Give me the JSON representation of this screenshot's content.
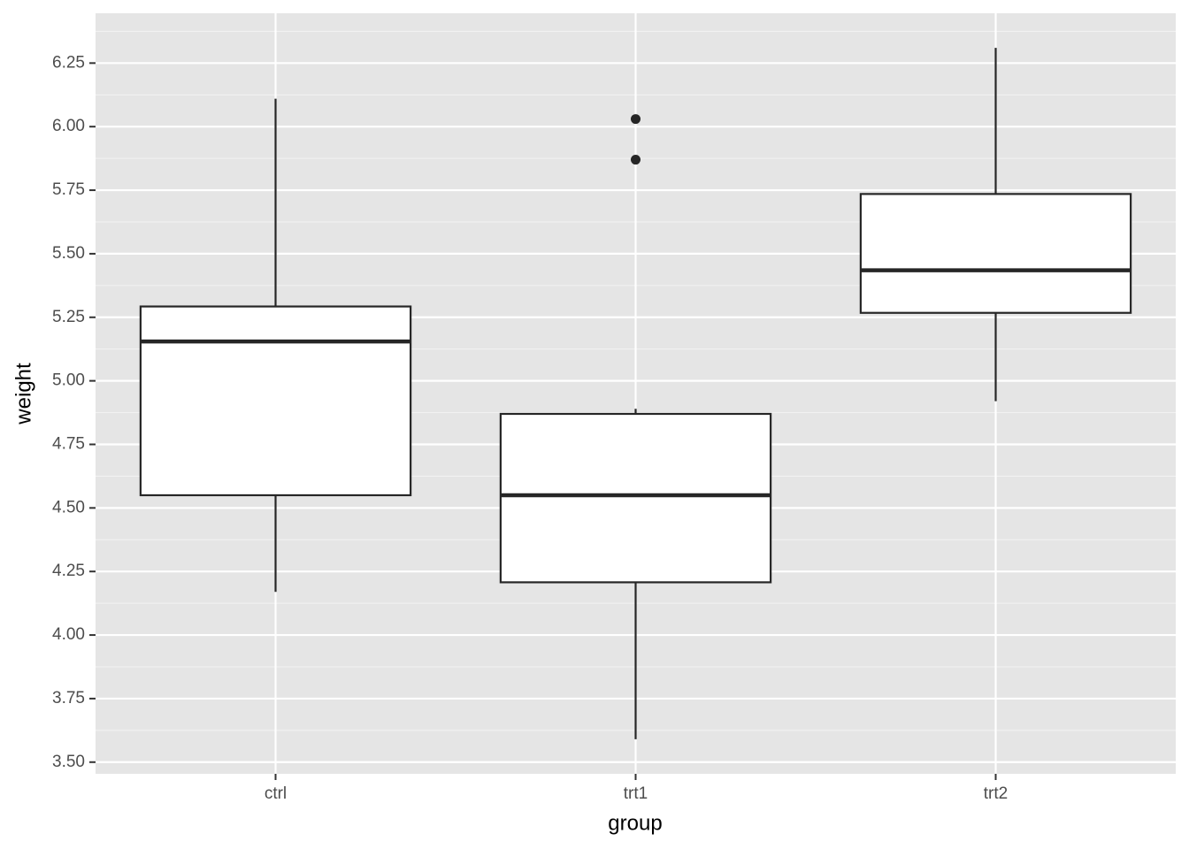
{
  "chart_data": {
    "type": "box",
    "x_label": "group",
    "y_label": "weight",
    "categories": [
      "ctrl",
      "trt1",
      "trt2"
    ],
    "boxes": [
      {
        "whisker_low": 4.17,
        "q1": 4.55,
        "median": 5.155,
        "q3": 5.2925,
        "whisker_high": 6.11,
        "outliers": []
      },
      {
        "whisker_low": 3.59,
        "q1": 4.2075,
        "median": 4.55,
        "q3": 4.87,
        "whisker_high": 4.89,
        "outliers": [
          5.87,
          6.03
        ]
      },
      {
        "whisker_low": 4.92,
        "q1": 5.2675,
        "median": 5.435,
        "q3": 5.735,
        "whisker_high": 6.31,
        "outliers": []
      }
    ],
    "color": "#262626",
    "fill": "#ffffff",
    "ylim": [
      3.454,
      6.446
    ],
    "yticks": [
      {
        "value": 3.5,
        "label": "3.50"
      },
      {
        "value": 3.75,
        "label": "3.75"
      },
      {
        "value": 4,
        "label": "4.00"
      },
      {
        "value": 4.25,
        "label": "4.25"
      },
      {
        "value": 4.5,
        "label": "4.50"
      },
      {
        "value": 4.75,
        "label": "4.75"
      },
      {
        "value": 5,
        "label": "5.00"
      },
      {
        "value": 5.25,
        "label": "5.25"
      },
      {
        "value": 5.5,
        "label": "5.50"
      },
      {
        "value": 5.75,
        "label": "5.75"
      },
      {
        "value": 6,
        "label": "6.00"
      },
      {
        "value": 6.25,
        "label": "6.25"
      }
    ],
    "grid": true
  }
}
